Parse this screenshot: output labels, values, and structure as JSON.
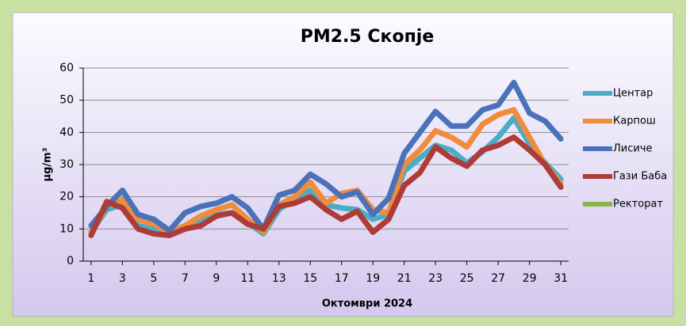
{
  "chart_data": {
    "type": "line",
    "title": "PM2.5 Скопје",
    "xlabel": "Октомври 2024",
    "ylabel": "µg/m³",
    "x": [
      1,
      2,
      3,
      4,
      5,
      6,
      7,
      8,
      9,
      10,
      11,
      12,
      13,
      14,
      15,
      16,
      17,
      18,
      19,
      20,
      21,
      22,
      23,
      24,
      25,
      26,
      27,
      28,
      29,
      30,
      31
    ],
    "xlim": [
      0.5,
      31.5
    ],
    "xticks": [
      1,
      3,
      5,
      7,
      9,
      11,
      13,
      15,
      17,
      19,
      21,
      23,
      25,
      27,
      29,
      31
    ],
    "ylim": [
      0,
      60
    ],
    "yticks": [
      0,
      10,
      20,
      30,
      40,
      50,
      60
    ],
    "grid": true,
    "legend": "right",
    "series": [
      {
        "name": "Центар",
        "color": "#4bacc6",
        "values": [
          9,
          16,
          17.5,
          11,
          10,
          9,
          10,
          13,
          14.5,
          15,
          12,
          8.5,
          16,
          19.5,
          22,
          17.5,
          16.5,
          16,
          13,
          14.5,
          28,
          32,
          36,
          34.5,
          30.5,
          34,
          38.5,
          44.5,
          36.5,
          30.5,
          25.5
        ]
      },
      {
        "name": "Карпош",
        "color": "#f08c3a",
        "values": [
          9,
          17,
          19,
          13,
          11.5,
          9,
          11,
          14,
          16,
          17.5,
          13,
          9,
          17.5,
          20,
          24.5,
          18,
          21,
          22,
          16,
          15,
          30,
          34.5,
          40.5,
          38.5,
          35.5,
          42.5,
          45.5,
          47,
          38.5,
          30,
          24
        ]
      },
      {
        "name": "Лисиче",
        "color": "#4a72b8",
        "values": [
          11,
          17,
          22,
          14.5,
          13,
          9.5,
          15,
          17,
          18,
          20,
          16.5,
          10,
          20.5,
          22,
          27,
          24,
          20,
          21.5,
          14.5,
          19.5,
          33.5,
          40,
          46.5,
          42,
          42,
          47,
          48.5,
          55.5,
          46,
          43.5,
          38
        ]
      },
      {
        "name": "Гази Баба",
        "color": "#ad3b37",
        "values": [
          8,
          18.5,
          16.5,
          10,
          8.5,
          8,
          10,
          11,
          14,
          15,
          11.5,
          10,
          17,
          18,
          20,
          16,
          13,
          15.5,
          9,
          13,
          23.5,
          27.5,
          35.5,
          32,
          29.5,
          34.5,
          36,
          38.5,
          34.5,
          30,
          23
        ]
      },
      {
        "name": "Ректорат",
        "color": "#8db44c",
        "values": [
          null,
          null,
          null,
          null,
          null,
          null,
          null,
          null,
          null,
          null,
          null,
          null,
          null,
          null,
          null,
          null,
          null,
          null,
          null,
          null,
          null,
          null,
          null,
          null,
          null,
          null,
          null,
          null,
          null,
          null,
          null
        ]
      }
    ]
  }
}
